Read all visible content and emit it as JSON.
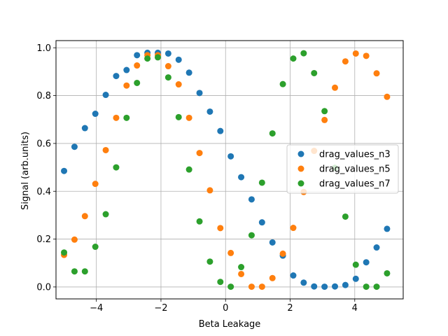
{
  "chart_data": {
    "type": "scatter",
    "title": "",
    "xlabel": "Beta Leakage",
    "ylabel": "Signal (arb.units)",
    "xlim": [
      -5.25,
      5.5
    ],
    "ylim": [
      -0.05,
      1.03
    ],
    "xticks": [
      -4,
      -2,
      0,
      2,
      4
    ],
    "yticks": [
      0.0,
      0.2,
      0.4,
      0.6,
      0.8,
      1.0
    ],
    "xtick_labels": [
      "−4",
      "−2",
      "0",
      "2",
      "4"
    ],
    "ytick_labels": [
      "0.0",
      "0.2",
      "0.4",
      "0.6",
      "0.8",
      "1.0"
    ],
    "grid": true,
    "legend_position": "center-right",
    "x": [
      -5.0,
      -4.677,
      -4.355,
      -4.032,
      -3.71,
      -3.387,
      -3.065,
      -2.742,
      -2.419,
      -2.097,
      -1.774,
      -1.452,
      -1.129,
      -0.806,
      -0.484,
      -0.161,
      0.161,
      0.484,
      0.806,
      1.129,
      1.452,
      1.774,
      2.097,
      2.419,
      2.742,
      3.065,
      3.387,
      3.71,
      4.032,
      4.355,
      4.677,
      5.0
    ],
    "series": [
      {
        "name": "drag_values_n3",
        "color": "#1f77b4",
        "values": [
          0.485,
          0.586,
          0.664,
          0.724,
          0.803,
          0.882,
          0.907,
          0.969,
          0.979,
          0.979,
          0.976,
          0.95,
          0.896,
          0.811,
          0.733,
          0.652,
          0.546,
          0.459,
          0.366,
          0.27,
          0.186,
          0.131,
          0.048,
          0.018,
          0.002,
          0.001,
          0.002,
          0.008,
          0.034,
          0.103,
          0.165,
          0.243
        ]
      },
      {
        "name": "drag_values_n5",
        "color": "#ff7f0e",
        "values": [
          0.134,
          0.198,
          0.296,
          0.431,
          0.572,
          0.707,
          0.842,
          0.926,
          0.969,
          0.969,
          0.923,
          0.847,
          0.707,
          0.56,
          0.404,
          0.246,
          0.142,
          0.054,
          0.001,
          0.001,
          0.037,
          0.139,
          0.247,
          0.397,
          0.569,
          0.698,
          0.833,
          0.943,
          0.976,
          0.966,
          0.893,
          0.795
        ]
      },
      {
        "name": "drag_values_n7",
        "color": "#2ca02c",
        "values": [
          0.144,
          0.065,
          0.065,
          0.168,
          0.304,
          0.5,
          0.707,
          0.853,
          0.955,
          0.96,
          0.876,
          0.71,
          0.491,
          0.274,
          0.106,
          0.021,
          0.001,
          0.083,
          0.216,
          0.436,
          0.642,
          0.848,
          0.955,
          0.977,
          0.894,
          0.735,
          0.498,
          0.294,
          0.093,
          0.001,
          0.001,
          0.057
        ]
      }
    ]
  }
}
